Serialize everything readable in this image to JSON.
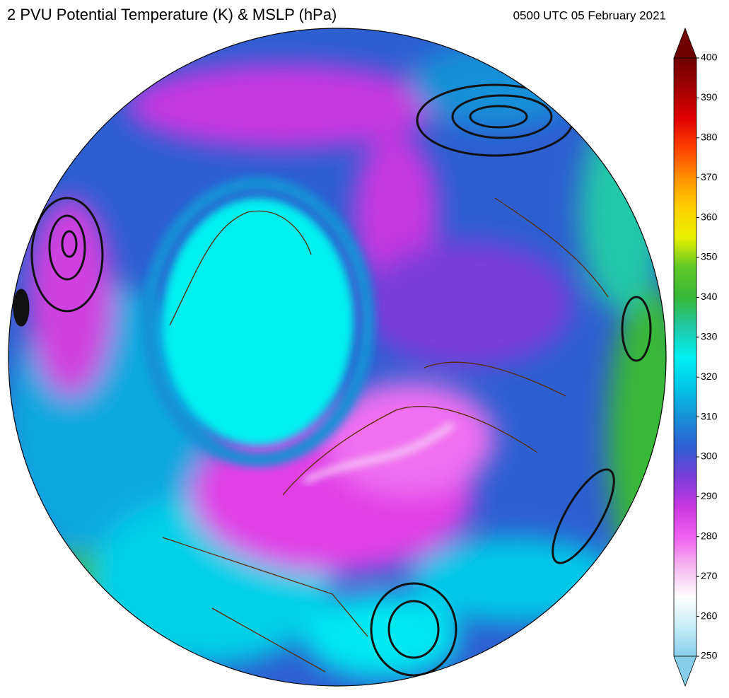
{
  "title": "2 PVU Potential Temperature (K) & MSLP (hPa)",
  "timestamp": "0500 UTC 05 February 2021",
  "colorbar": {
    "lim": [
      250,
      400
    ],
    "ticks": [
      250,
      260,
      270,
      280,
      290,
      300,
      310,
      320,
      330,
      340,
      350,
      360,
      370,
      380,
      390,
      400
    ],
    "colors": [
      "#87ceeb",
      "#c8eef8",
      "#ffffff",
      "#f5b8f0",
      "#f060f0",
      "#c838e0",
      "#7a3ed8",
      "#2d5fd0",
      "#1890d8",
      "#00c8e8",
      "#00f0f0",
      "#20c8a8",
      "#38b838",
      "#60c828",
      "#e8f000",
      "#ffd000",
      "#ff9000",
      "#ff4000",
      "#e00000",
      "#a00000",
      "#700000"
    ]
  }
}
